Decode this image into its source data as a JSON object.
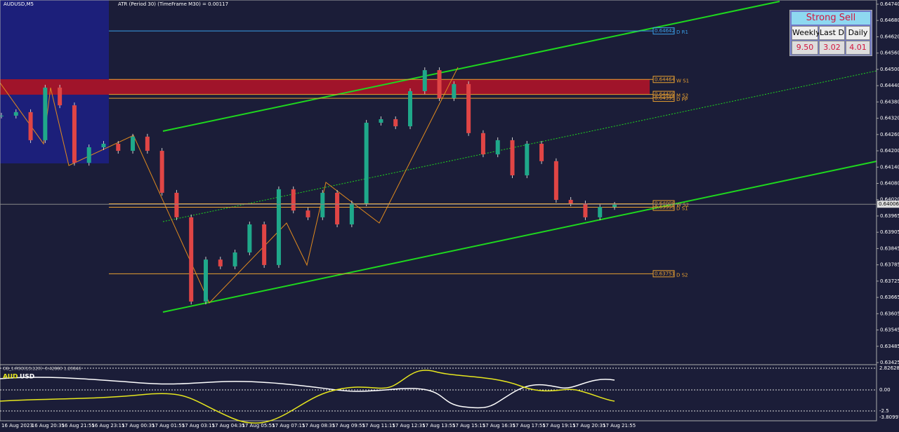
{
  "header": {
    "symbol": "AUDUSD,M5",
    "atr": "ATR (Period 30) (TimeFrame M30) = 0.00117"
  },
  "price_axis": {
    "ylim": [
      0.63425,
      0.6474
    ],
    "labels": [
      "0.64740",
      "0.64680",
      "0.64620",
      "0.64560",
      "0.64500",
      "0.64440",
      "0.64380",
      "0.64320",
      "0.64260",
      "0.64200",
      "0.64140",
      "0.64080",
      "0.64020",
      "0.63965",
      "0.63905",
      "0.63845",
      "0.63785",
      "0.63725",
      "0.63665",
      "0.63605",
      "0.63545",
      "0.63485",
      "0.63425"
    ],
    "current": "0.64006"
  },
  "time_axis": [
    "16 Aug 2023",
    "16 Aug 20:35",
    "16 Aug 21:55",
    "16 Aug 23:15",
    "17 Aug 00:35",
    "17 Aug 01:55",
    "17 Aug 03:15",
    "17 Aug 04:35",
    "17 Aug 05:55",
    "17 Aug 07:15",
    "17 Aug 08:35",
    "17 Aug 09:55",
    "17 Aug 11:15",
    "17 Aug 12:35",
    "17 Aug 13:55",
    "17 Aug 15:15",
    "17 Aug 16:35",
    "17 Aug 17:55",
    "17 Aug 19:15",
    "17 Aug 20:35",
    "17 Aug 21:55"
  ],
  "closes": [
    0.64331,
    0.64344,
    0.64241,
    0.64434,
    0.64369,
    0.64158,
    0.64215,
    0.64228,
    0.64202,
    0.64254,
    0.64202,
    0.64048,
    0.63958,
    0.63649,
    0.63803,
    0.63778,
    0.63829,
    0.63932,
    0.63783,
    0.64061,
    0.63983,
    0.63958,
    0.64048,
    0.63932,
    0.64009,
    0.64305,
    0.64318,
    0.64292,
    0.64421,
    0.64498,
    0.64395,
    0.64447,
    0.64267,
    0.64189,
    0.64241,
    0.64112,
    0.64228,
    0.64164,
    0.64022,
    0.64009,
    0.63958,
    0.63996,
    0.64004
  ],
  "levels": [
    {
      "price": "0.64642",
      "name": "D R1"
    },
    {
      "price": "0.64464",
      "name": "W S1"
    },
    {
      "price": "0.64409",
      "name": "M S2"
    },
    {
      "price": "0.64395",
      "name": "D PP"
    },
    {
      "price": "0.64008",
      "name": "W S2"
    },
    {
      "price": "0.63995",
      "name": "D S1"
    },
    {
      "price": "0.63751",
      "name": "D S2"
    }
  ],
  "panel": {
    "signal": "Strong Sell",
    "headers": [
      "Weekly",
      "Last D",
      "Daily"
    ],
    "values": [
      "9.50",
      "3.02",
      "4.01"
    ]
  },
  "indicator": {
    "title": "OB_1.RSO(13,120) -0.42880 1.20846",
    "currency1": "AUD",
    "currency2": "USD",
    "labels": [
      "2.82628",
      "0.00",
      "-2.5",
      "-3.80997"
    ]
  }
}
